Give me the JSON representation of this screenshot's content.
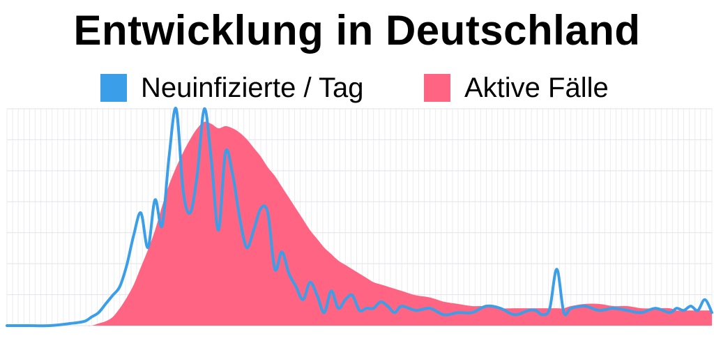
{
  "title": "Entwicklung in Deutschland",
  "legend": [
    {
      "label": "Neuinfizierte / Tag",
      "color": "#3a9ee8"
    },
    {
      "label": "Aktive Fälle",
      "color": "#ff6582"
    }
  ],
  "chart_data": {
    "type": "area",
    "title": "Entwicklung in Deutschland",
    "xlabel": "",
    "ylabel": "",
    "grid": true,
    "legend_position": "top-center",
    "xlim": [
      0,
      100
    ],
    "ylim": [
      0,
      100
    ],
    "x": [
      0,
      3,
      6,
      9,
      11,
      12,
      13,
      14,
      15,
      16,
      17,
      18,
      19,
      20,
      21,
      22,
      23,
      24,
      25,
      26,
      27,
      28,
      29,
      30,
      31,
      32,
      33,
      34,
      35,
      36,
      37,
      38,
      39,
      40,
      41,
      42,
      43,
      44,
      45,
      46,
      47,
      48,
      49,
      50,
      51,
      52,
      53,
      54,
      55,
      56,
      58,
      60,
      62,
      64,
      66,
      68,
      70,
      72,
      74,
      75,
      76,
      77,
      78,
      79,
      80,
      82,
      84,
      86,
      88,
      90,
      92,
      94,
      95,
      96,
      97,
      98,
      99,
      100
    ],
    "series": [
      {
        "name": "Neuinfizierte / Tag",
        "type": "line",
        "color": "#3a9ee8",
        "values": [
          0,
          0,
          0,
          1,
          2,
          4,
          6,
          10,
          14,
          18,
          28,
          42,
          52,
          36,
          58,
          46,
          78,
          100,
          62,
          52,
          70,
          100,
          76,
          44,
          80,
          70,
          50,
          36,
          44,
          54,
          52,
          26,
          34,
          24,
          18,
          12,
          20,
          14,
          6,
          16,
          8,
          12,
          14,
          7,
          8,
          8,
          11,
          9,
          6,
          9,
          7,
          8,
          5,
          6,
          6,
          9,
          8,
          5,
          7,
          7,
          5,
          8,
          26,
          6,
          8,
          9,
          7,
          8,
          7,
          6,
          8,
          6,
          8,
          7,
          9,
          7,
          12,
          6
        ]
      },
      {
        "name": "Aktive Fälle",
        "type": "area",
        "color": "#ff6582",
        "values": [
          0,
          0,
          0,
          0,
          0,
          0,
          1,
          2,
          4,
          8,
          13,
          19,
          27,
          35,
          44,
          55,
          65,
          73,
          80,
          86,
          91,
          94,
          93,
          91,
          92,
          91,
          89,
          86,
          82,
          78,
          73,
          69,
          64,
          59,
          54,
          49,
          44,
          40,
          36,
          33,
          30,
          28,
          26,
          24,
          22,
          20,
          19,
          18,
          17,
          16,
          14,
          13,
          11,
          10,
          9,
          9,
          8,
          8,
          8,
          8,
          8,
          8,
          8,
          8,
          9,
          10,
          10,
          9,
          9,
          8,
          8,
          8,
          7,
          7,
          7,
          7,
          7,
          7
        ]
      }
    ]
  }
}
